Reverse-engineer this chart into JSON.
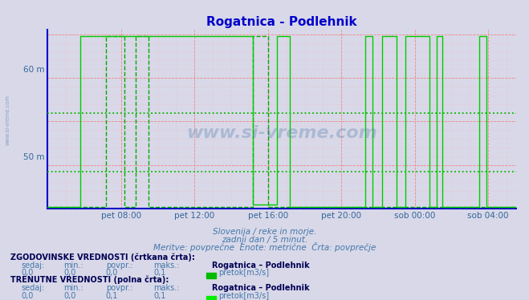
{
  "title": "Rogatnica - Podlehnik",
  "title_color": "#0000cc",
  "title_fontsize": 11,
  "bg_color": "#d8d8e8",
  "plot_bg_color": "#d8d8e8",
  "tick_color": "#336699",
  "grid_color_major": "#ee8888",
  "grid_color_minor": "#f4bbbb",
  "hgrid_dotted_color": "#00bb00",
  "hline_dotted_y1": 55.0,
  "hline_dotted_y2": 48.2,
  "xticklabels": [
    "pet 08:00",
    "pet 12:00",
    "pet 16:00",
    "pet 20:00",
    "sob 00:00",
    "sob 04:00"
  ],
  "xtick_positions": [
    4,
    8,
    12,
    16,
    20,
    24
  ],
  "ytick_labels": [
    "60 m",
    "50 m"
  ],
  "ytick_positions": [
    60,
    50
  ],
  "ymin": 44.0,
  "ymax": 64.5,
  "xmin": 0,
  "xmax": 25.5,
  "watermark": "www.si-vreme.com",
  "subtitle1": "Slovenija / reke in morje.",
  "subtitle2": "zadnji dan / 5 minut.",
  "subtitle3": "Meritve: povprečne  Enote: metrične  Črta: povprečje",
  "footer_color": "#4477aa",
  "line_color_solid": "#00cc00",
  "line_color_dashed": "#00aa00",
  "solid_line_data_x": [
    0,
    1.8,
    1.8,
    11.2,
    11.2,
    12.5,
    12.5,
    13.2,
    13.2,
    17.3,
    17.3,
    17.7,
    17.7,
    18.2,
    18.2,
    19.0,
    19.0,
    19.5,
    19.5,
    20.8,
    20.8,
    21.2,
    21.2,
    21.5,
    21.5,
    23.5,
    23.5,
    23.9,
    23.9,
    25.5
  ],
  "solid_line_data_y": [
    44.2,
    44.2,
    63.8,
    63.8,
    44.5,
    44.5,
    63.8,
    63.8,
    44.2,
    44.2,
    63.8,
    63.8,
    44.2,
    44.2,
    63.8,
    63.8,
    44.2,
    44.2,
    63.8,
    63.8,
    44.2,
    44.2,
    63.8,
    63.8,
    44.2,
    44.2,
    63.8,
    63.8,
    44.2,
    44.2
  ],
  "dashed_line_data_x": [
    0,
    3.2,
    3.2,
    4.2,
    4.2,
    4.8,
    4.8,
    5.5,
    5.5,
    6.2,
    6.2,
    11.2,
    11.2,
    12.0,
    12.0,
    25.5
  ],
  "dashed_line_data_y": [
    44.2,
    44.2,
    63.8,
    63.8,
    44.2,
    44.2,
    63.8,
    63.8,
    44.2,
    44.2,
    44.2,
    44.2,
    63.8,
    63.8,
    44.2,
    44.2
  ],
  "legend_section1_title": "ZGODOVINSKE VREDNOSTI (črtkana črta):",
  "legend_section2_title": "TRENUTNE VREDNOSTI (polna črta):",
  "s1_sedaj": "0,0",
  "s1_min": "0,0",
  "s1_povpr": "0,0",
  "s1_maks": "0,1",
  "s2_sedaj": "0,0",
  "s2_min": "0,0",
  "s2_povpr": "0,1",
  "s2_maks": "0,1",
  "station_name": "Rogatnica – Podlehnik",
  "legend_label": "pretok[m3/s]",
  "legend_color1": "#00bb00",
  "legend_color2": "#00ee00"
}
